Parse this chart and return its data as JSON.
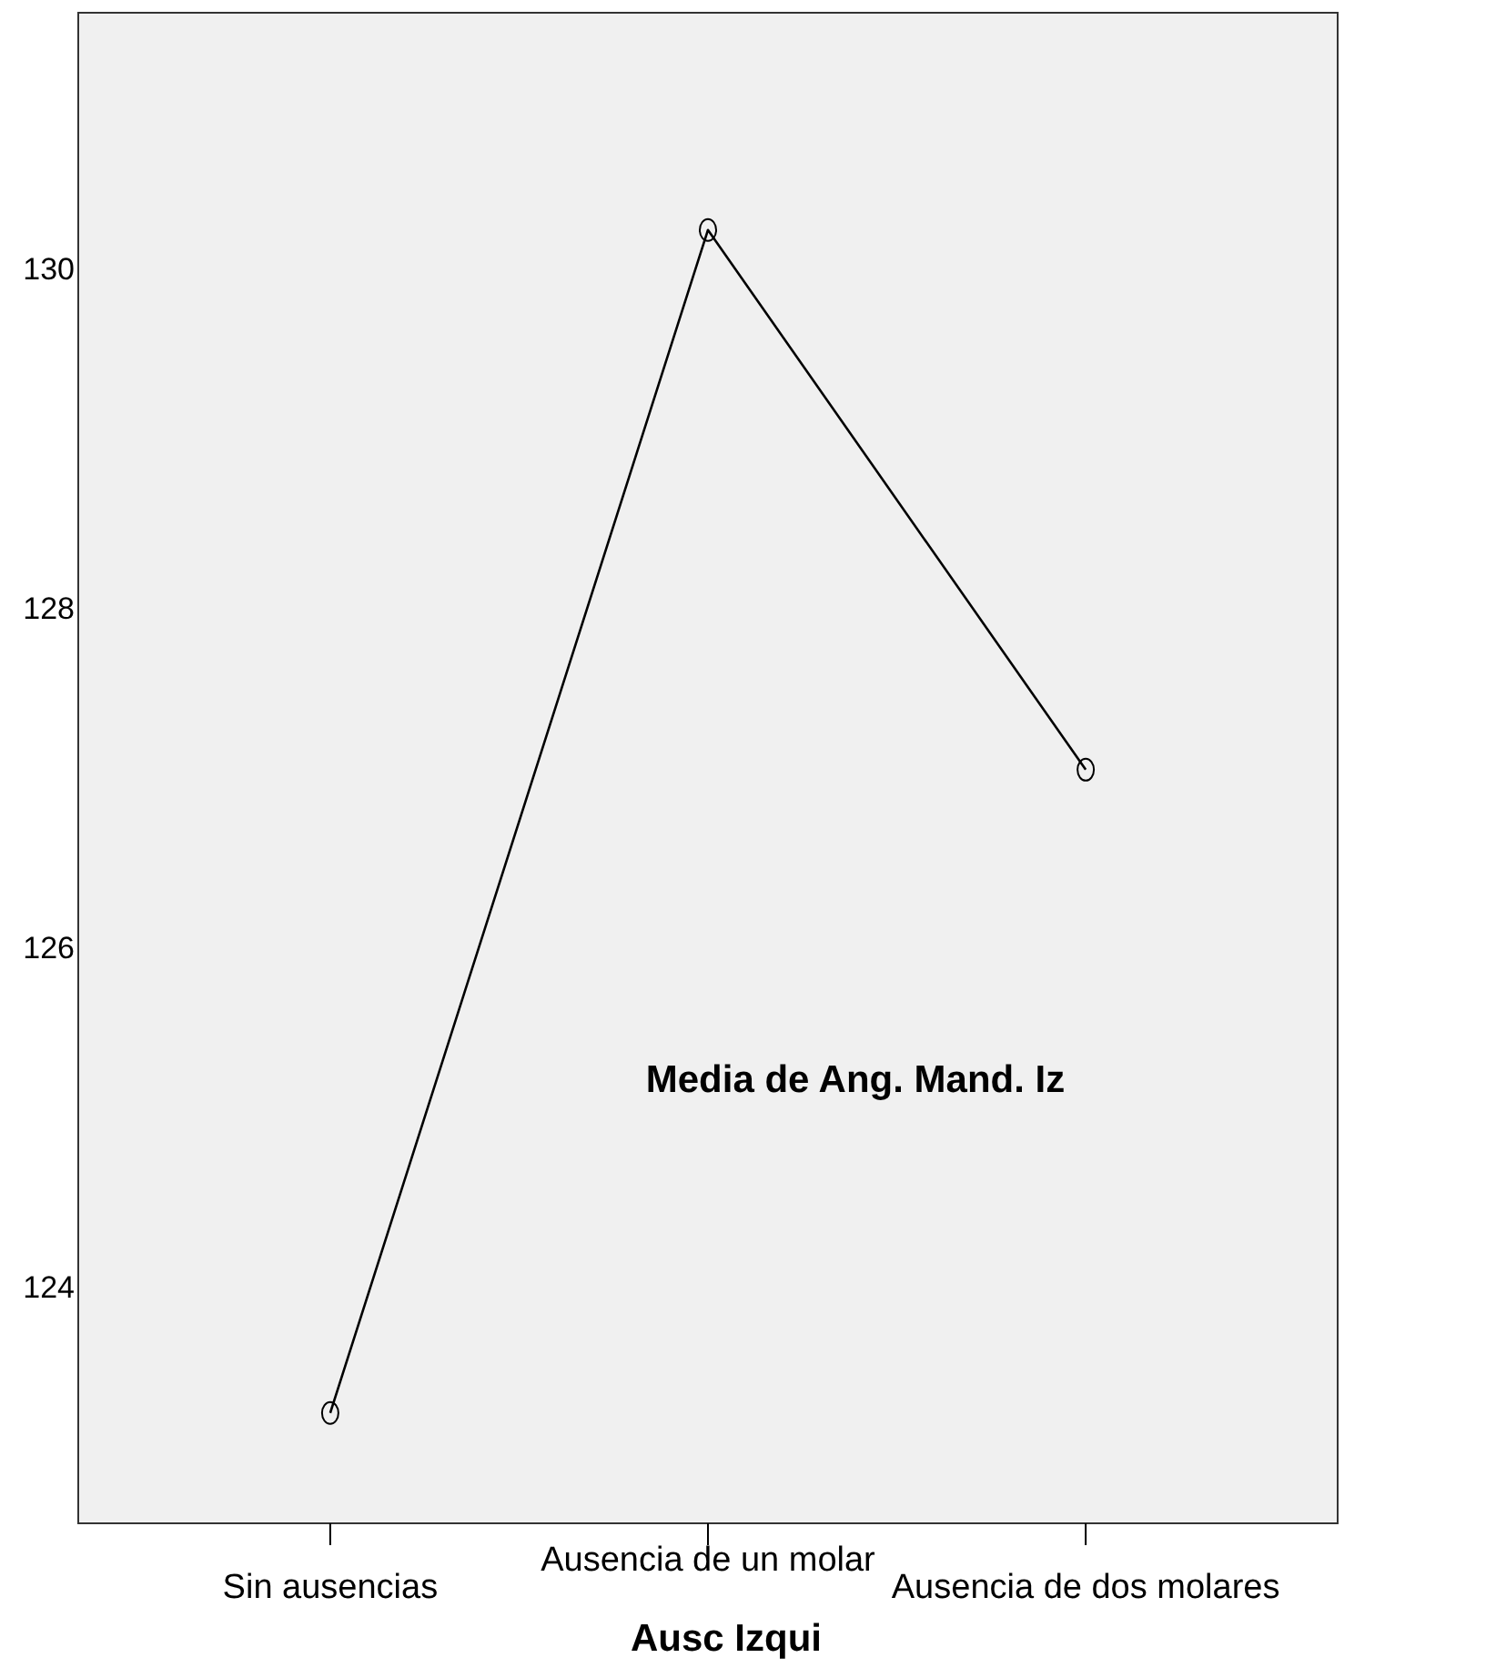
{
  "chart_data": {
    "type": "line",
    "xlabel": "Ausc Izqui",
    "ylabel": "Media de Ang. Mand. Iz",
    "categories": [
      "Sin ausencias",
      "Ausencia de un molar",
      "Ausencia de dos molares"
    ],
    "series": [
      {
        "color": "#000000",
        "values": [
          123.26,
          130.23,
          127.05
        ]
      }
    ],
    "ylim": [
      122.61,
      131.51
    ],
    "yticks": [
      124,
      126,
      128,
      130
    ],
    "marker": "circle",
    "line_style": "solid",
    "grid": false
  }
}
